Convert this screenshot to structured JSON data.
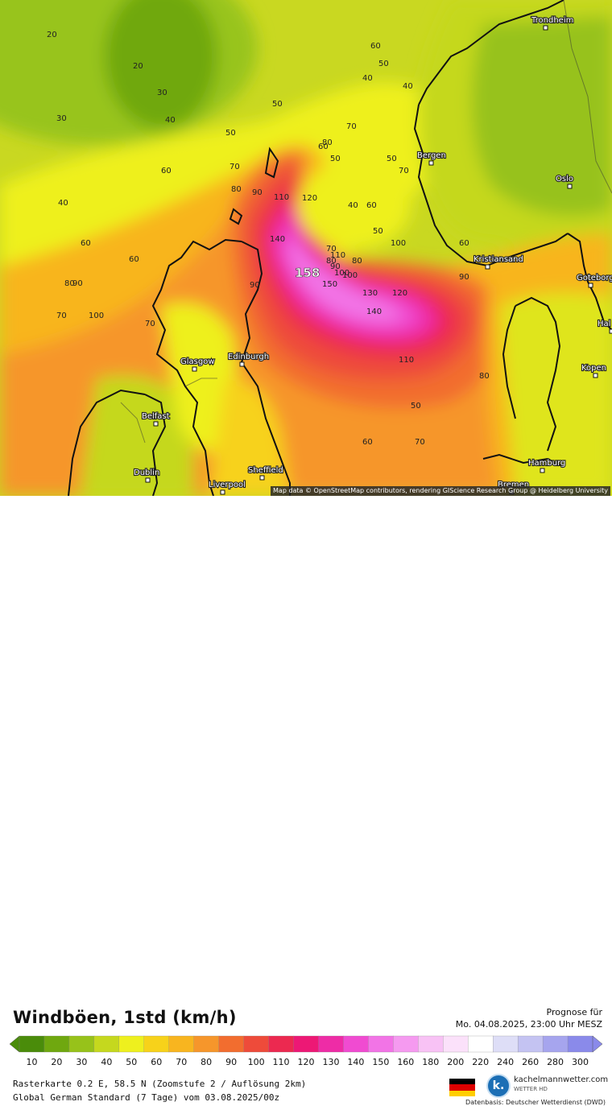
{
  "map": {
    "attribution": "Map data © OpenStreetMap contributors, rendering GIScience Research Group @ Heidelberg University",
    "peak_label": "158",
    "cities": [
      {
        "name": "Trondheim"
      },
      {
        "name": "Bergen"
      },
      {
        "name": "Oslo"
      },
      {
        "name": "Kristiansand"
      },
      {
        "name": "Goteborg"
      },
      {
        "name": "Glasgow"
      },
      {
        "name": "Edinburgh"
      },
      {
        "name": "Belfast"
      },
      {
        "name": "Dublin"
      },
      {
        "name": "Liverpool"
      },
      {
        "name": "Sheffield"
      },
      {
        "name": "Kopen"
      },
      {
        "name": "Hamburg"
      },
      {
        "name": "Bremen"
      },
      {
        "name": "Hal"
      }
    ],
    "contour_labels": [
      "20",
      "20",
      "30",
      "30",
      "40",
      "40",
      "50",
      "50",
      "60",
      "60",
      "70",
      "70",
      "80",
      "80",
      "90",
      "90",
      "100",
      "100",
      "110",
      "110",
      "120",
      "120",
      "130",
      "140",
      "140",
      "150",
      "50",
      "60",
      "50",
      "40",
      "60",
      "70",
      "80",
      "90",
      "100",
      "110",
      "70",
      "80",
      "60",
      "50",
      "40",
      "90",
      "60",
      "70",
      "80",
      "50",
      "70",
      "60",
      "40",
      "50",
      "70",
      "80",
      "90",
      "100",
      "60"
    ],
    "wind_colors": {
      "low": "#8ab80e",
      "mid": "#f6e81c",
      "orange": "#f5a623",
      "high": "#ef3c4a",
      "extreme": "#e534b8",
      "peak": "#f59df0"
    }
  },
  "legend": {
    "title": "Windböen, 1std (km/h)",
    "forecast_label": "Prognose für",
    "forecast_time": "Mo. 04.08.2025, 23:00 Uhr MESZ",
    "scale_values": [
      "10",
      "20",
      "30",
      "40",
      "50",
      "60",
      "70",
      "80",
      "90",
      "100",
      "110",
      "120",
      "130",
      "140",
      "150",
      "160",
      "180",
      "200",
      "220",
      "240",
      "260",
      "280",
      "300"
    ],
    "scale_colors": [
      "#4a8c0a",
      "#6fa80f",
      "#97c21a",
      "#c5d81e",
      "#eef01e",
      "#f7d21a",
      "#f8b51f",
      "#f6962b",
      "#f26d2f",
      "#ee4b3a",
      "#ec2950",
      "#ed1875",
      "#ee2ca6",
      "#f04bd1",
      "#f274e6",
      "#f59af0",
      "#f8c2f5",
      "#fbe1fa",
      "#ffffff",
      "#dedef7",
      "#c4c3f2",
      "#a6a5ee",
      "#8a8aea"
    ]
  },
  "info": {
    "line1": "Rasterkarte 0.2 E, 58.5 N (Zoomstufe 2 / Auflösung 2km)",
    "line2": "Global German Standard (7 Tage) vom  03.08.2025/00z"
  },
  "brand": {
    "name": "kachelmannwetter.com",
    "sub": "WETTER HD",
    "datenbasis": "Datenbasis: Deutscher Wetterdienst (DWD)"
  }
}
